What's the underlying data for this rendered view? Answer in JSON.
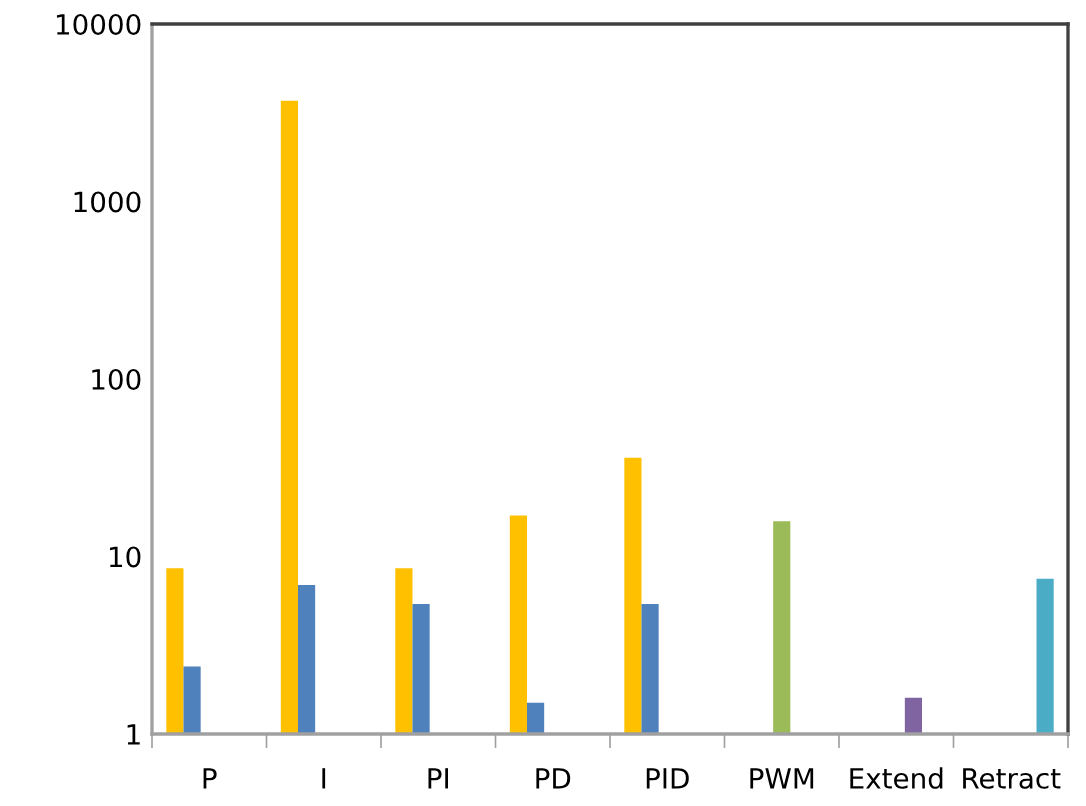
{
  "chart_data": {
    "type": "bar",
    "log": "y",
    "categories": [
      "P",
      "I",
      "PI",
      "PD",
      "PID",
      "PWM",
      "Extend",
      "Retract"
    ],
    "series": [
      {
        "color": "#ffc000",
        "values": [
          8.6,
          3700,
          8.6,
          17,
          36,
          null,
          null,
          null
        ]
      },
      {
        "color": "#4f81bd",
        "values": [
          2.4,
          6.9,
          5.4,
          1.5,
          5.4,
          null,
          null,
          null
        ]
      },
      {
        "color": "#9bbb59",
        "values": [
          null,
          null,
          null,
          null,
          null,
          15.8,
          null,
          null
        ]
      },
      {
        "color": "#8064a2",
        "values": [
          null,
          null,
          null,
          null,
          null,
          null,
          1.6,
          null
        ]
      },
      {
        "color": "#4bacc6",
        "values": [
          null,
          null,
          null,
          null,
          null,
          null,
          null,
          7.5
        ]
      }
    ],
    "ylim": [
      1,
      10000
    ],
    "yticks": [
      1,
      10,
      100,
      1000,
      10000
    ],
    "grid": false,
    "legend": false
  }
}
